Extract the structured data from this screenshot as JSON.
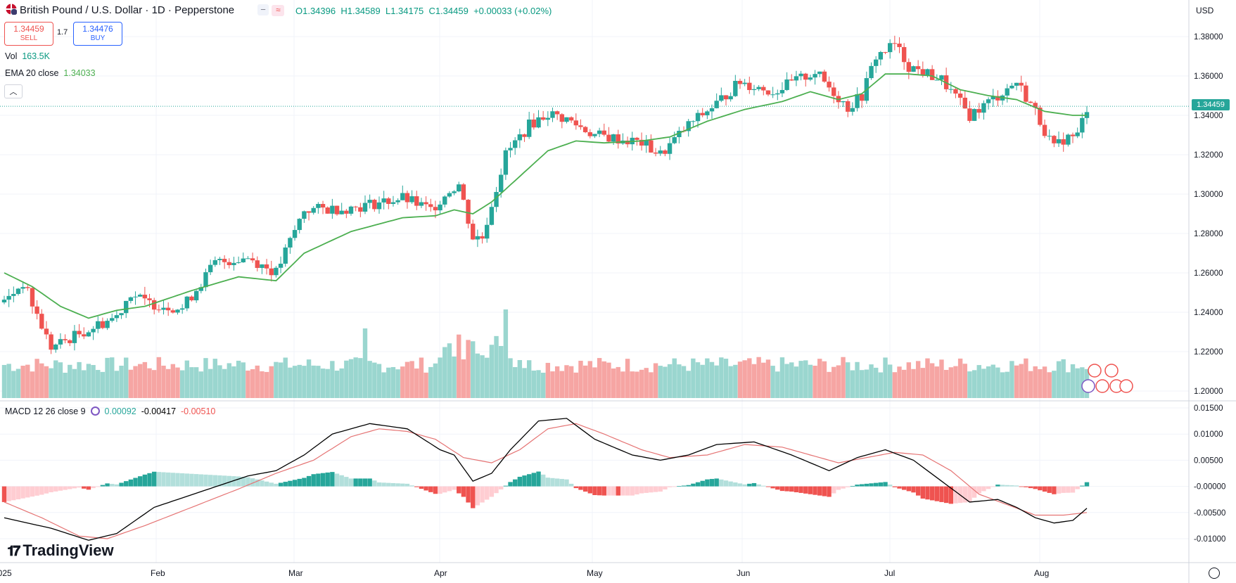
{
  "header": {
    "symbol_title": "British Pound / U.S. Dollar · 1D · Pepperstone",
    "open": "O1.34396",
    "high": "H1.34589",
    "low": "L1.34175",
    "close": "C1.34459",
    "change": "+0.00033 (+0.02%)",
    "sell_price": "1.34459",
    "sell_label": "SELL",
    "spread": "1.7",
    "buy_price": "1.34476",
    "buy_label": "BUY",
    "vol_label": "Vol",
    "vol_value": "163.5K",
    "ema_label": "EMA 20 close",
    "ema_value": "1.34033",
    "currency": "USD",
    "current_price_tag": "1.34459",
    "logo": "TradingView"
  },
  "macd_header": {
    "label": "MACD 12 26 close 9",
    "hist": "0.00092",
    "macd": "-0.00417",
    "signal": "-0.00510"
  },
  "colors": {
    "up": "#26a69a",
    "down": "#ef5350",
    "ema": "#4caf50",
    "macd": "#000000",
    "signal": "#e57373",
    "vol_up": "#9ad6cf",
    "vol_down": "#f6a5a3"
  },
  "icons": [
    "symbol-flag-icon",
    "chevron-up-icon",
    "settings-gear-icon",
    "event-flag-icons"
  ],
  "chart_data": {
    "type": "candlestick",
    "title": "British Pound / U.S. Dollar · 1D · Pepperstone",
    "x_labels": [
      "2025",
      "Feb",
      "Mar",
      "Apr",
      "May",
      "Jun",
      "Jul",
      "Aug"
    ],
    "price_ticks": [
      "1.38000",
      "1.36000",
      "1.34000",
      "1.32000",
      "1.30000",
      "1.28000",
      "1.26000",
      "1.24000",
      "1.22000",
      "1.20000"
    ],
    "price_range": [
      1.194,
      1.39
    ],
    "macd_ticks": [
      "0.01500",
      "0.01000",
      "0.00500",
      "-0.00000",
      "-0.00500",
      "-0.01000"
    ],
    "macd_range": [
      -0.0125,
      0.0165
    ],
    "price_path_anchors": [
      [
        0,
        1.245
      ],
      [
        4,
        1.255
      ],
      [
        10,
        1.222
      ],
      [
        15,
        1.228
      ],
      [
        24,
        1.238
      ],
      [
        27,
        1.25
      ],
      [
        30,
        1.245
      ],
      [
        38,
        1.242
      ],
      [
        45,
        1.265
      ],
      [
        52,
        1.268
      ],
      [
        58,
        1.26
      ],
      [
        64,
        1.292
      ],
      [
        74,
        1.293
      ],
      [
        85,
        1.298
      ],
      [
        91,
        1.292
      ],
      [
        95,
        1.302
      ],
      [
        97,
        1.305
      ],
      [
        100,
        1.278
      ],
      [
        102,
        1.278
      ],
      [
        104,
        1.295
      ],
      [
        107,
        1.32
      ],
      [
        112,
        1.335
      ],
      [
        116,
        1.341
      ],
      [
        120,
        1.338
      ],
      [
        126,
        1.33
      ],
      [
        136,
        1.326
      ],
      [
        140,
        1.32
      ],
      [
        146,
        1.335
      ],
      [
        152,
        1.346
      ],
      [
        157,
        1.357
      ],
      [
        164,
        1.352
      ],
      [
        173,
        1.362
      ],
      [
        180,
        1.344
      ],
      [
        183,
        1.35
      ],
      [
        186,
        1.37
      ],
      [
        190,
        1.376
      ],
      [
        193,
        1.365
      ],
      [
        200,
        1.358
      ],
      [
        206,
        1.34
      ],
      [
        212,
        1.35
      ],
      [
        216,
        1.357
      ],
      [
        220,
        1.342
      ],
      [
        224,
        1.323
      ],
      [
        226,
        1.328
      ],
      [
        229,
        1.33
      ],
      [
        231,
        1.344
      ]
    ],
    "ema_anchors": [
      [
        0,
        1.26
      ],
      [
        6,
        1.253
      ],
      [
        12,
        1.243
      ],
      [
        18,
        1.237
      ],
      [
        24,
        1.241
      ],
      [
        30,
        1.243
      ],
      [
        40,
        1.251
      ],
      [
        50,
        1.258
      ],
      [
        58,
        1.256
      ],
      [
        64,
        1.27
      ],
      [
        74,
        1.281
      ],
      [
        85,
        1.288
      ],
      [
        92,
        1.289
      ],
      [
        96,
        1.292
      ],
      [
        100,
        1.29
      ],
      [
        104,
        1.296
      ],
      [
        110,
        1.309
      ],
      [
        116,
        1.322
      ],
      [
        122,
        1.327
      ],
      [
        128,
        1.326
      ],
      [
        136,
        1.327
      ],
      [
        142,
        1.329
      ],
      [
        150,
        1.337
      ],
      [
        158,
        1.343
      ],
      [
        166,
        1.347
      ],
      [
        172,
        1.352
      ],
      [
        178,
        1.348
      ],
      [
        183,
        1.351
      ],
      [
        188,
        1.361
      ],
      [
        193,
        1.361
      ],
      [
        198,
        1.36
      ],
      [
        204,
        1.353
      ],
      [
        210,
        1.35
      ],
      [
        216,
        1.348
      ],
      [
        222,
        1.342
      ],
      [
        228,
        1.34
      ],
      [
        231,
        1.34
      ]
    ],
    "macd_anchors": [
      [
        0,
        -0.006
      ],
      [
        10,
        -0.008
      ],
      [
        18,
        -0.0103
      ],
      [
        24,
        -0.009
      ],
      [
        32,
        -0.004
      ],
      [
        42,
        -0.001
      ],
      [
        52,
        0.002
      ],
      [
        58,
        0.003
      ],
      [
        64,
        0.006
      ],
      [
        70,
        0.01
      ],
      [
        78,
        0.012
      ],
      [
        86,
        0.011
      ],
      [
        93,
        0.007
      ],
      [
        96,
        0.006
      ],
      [
        100,
        0.001
      ],
      [
        104,
        0.0025
      ],
      [
        108,
        0.007
      ],
      [
        114,
        0.0125
      ],
      [
        120,
        0.013
      ],
      [
        126,
        0.009
      ],
      [
        134,
        0.006
      ],
      [
        140,
        0.005
      ],
      [
        146,
        0.006
      ],
      [
        152,
        0.008
      ],
      [
        160,
        0.0085
      ],
      [
        168,
        0.006
      ],
      [
        176,
        0.003
      ],
      [
        182,
        0.0055
      ],
      [
        188,
        0.007
      ],
      [
        194,
        0.005
      ],
      [
        200,
        0.001
      ],
      [
        206,
        -0.003
      ],
      [
        212,
        -0.0025
      ],
      [
        216,
        -0.004
      ],
      [
        220,
        -0.006
      ],
      [
        224,
        -0.007
      ],
      [
        228,
        -0.0065
      ],
      [
        231,
        -0.0042
      ]
    ],
    "signal_anchors": [
      [
        0,
        -0.003
      ],
      [
        8,
        -0.006
      ],
      [
        16,
        -0.0095
      ],
      [
        22,
        -0.01
      ],
      [
        30,
        -0.0075
      ],
      [
        40,
        -0.004
      ],
      [
        50,
        -0.0005
      ],
      [
        58,
        0.0025
      ],
      [
        66,
        0.005
      ],
      [
        74,
        0.0095
      ],
      [
        80,
        0.011
      ],
      [
        86,
        0.0105
      ],
      [
        92,
        0.009
      ],
      [
        98,
        0.0055
      ],
      [
        104,
        0.0045
      ],
      [
        110,
        0.007
      ],
      [
        116,
        0.011
      ],
      [
        122,
        0.012
      ],
      [
        128,
        0.01
      ],
      [
        136,
        0.007
      ],
      [
        142,
        0.0055
      ],
      [
        150,
        0.006
      ],
      [
        158,
        0.008
      ],
      [
        166,
        0.0075
      ],
      [
        172,
        0.006
      ],
      [
        178,
        0.0045
      ],
      [
        184,
        0.0055
      ],
      [
        190,
        0.0065
      ],
      [
        196,
        0.006
      ],
      [
        202,
        0.003
      ],
      [
        208,
        -0.0015
      ],
      [
        214,
        -0.0035
      ],
      [
        220,
        -0.0055
      ],
      [
        226,
        -0.0055
      ],
      [
        231,
        -0.005
      ]
    ]
  }
}
